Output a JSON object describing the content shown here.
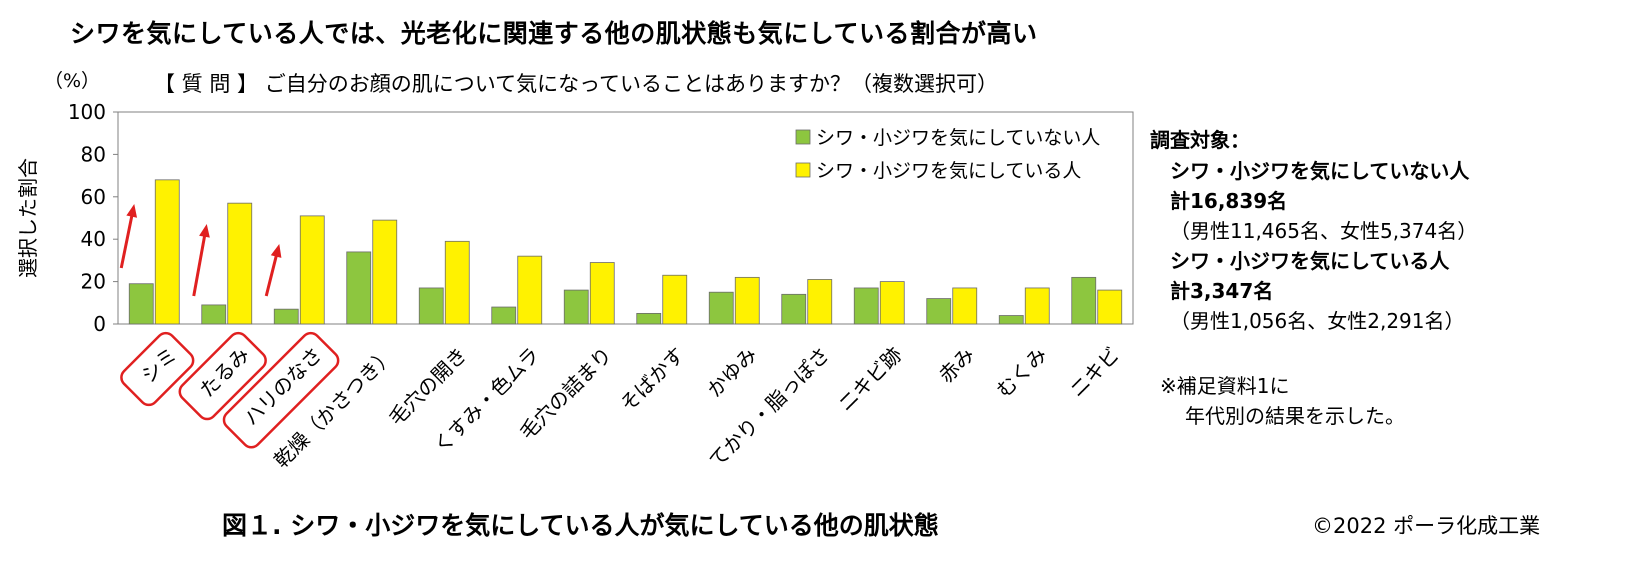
{
  "title": "シワを気にしている人では、光老化に関連する他の肌状態も気にしている割合が高い",
  "unit_label": "（%）",
  "question": "【 質 問 】 ご自分のお顔の肌について気になっていることはありますか？（複数選択可）",
  "chart_data": {
    "type": "bar",
    "ylabel": "選択した割合",
    "ylim": [
      0,
      100
    ],
    "yticks": [
      0,
      20,
      40,
      60,
      80,
      100
    ],
    "legend_position": "top-right",
    "categories": [
      "シミ",
      "たるみ",
      "ハリのなさ",
      "乾燥（かさつき）",
      "毛穴の開き",
      "くすみ・色ムラ",
      "毛穴の詰まり",
      "そばかす",
      "かゆみ",
      "てかり・脂っぽさ",
      "ニキビ跡",
      "赤み",
      "むくみ",
      "ニキビ"
    ],
    "highlighted_categories": [
      "シミ",
      "たるみ",
      "ハリのなさ"
    ],
    "series": [
      {
        "name": "シワ・小ジワを気にしていない人",
        "color": "#8DC63F",
        "values": [
          19,
          9,
          7,
          34,
          17,
          8,
          16,
          5,
          15,
          14,
          17,
          12,
          4,
          22
        ]
      },
      {
        "name": "シワ・小ジワを気にしている人",
        "color": "#FFF200",
        "values": [
          68,
          57,
          51,
          49,
          39,
          32,
          29,
          23,
          22,
          21,
          20,
          17,
          17,
          16
        ]
      }
    ],
    "accent_color": "#E02020"
  },
  "sidebar": {
    "heading": "調査対象：",
    "group1_name": "シワ・小ジワを気にしていない人",
    "group1_total": "計16,839名",
    "group1_breakdown": "（男性11,465名、女性5,374名）",
    "group2_name": "シワ・小ジワを気にしている人",
    "group2_total": "計3,347名",
    "group2_breakdown": "（男性1,056名、女性2,291名）",
    "note_line1": "※補足資料1に",
    "note_line2": "年代別の結果を示した。"
  },
  "caption": "図１. シワ・小ジワを気にしている人が気にしている他の肌状態",
  "copyright": "©2022 ポーラ化成工業"
}
